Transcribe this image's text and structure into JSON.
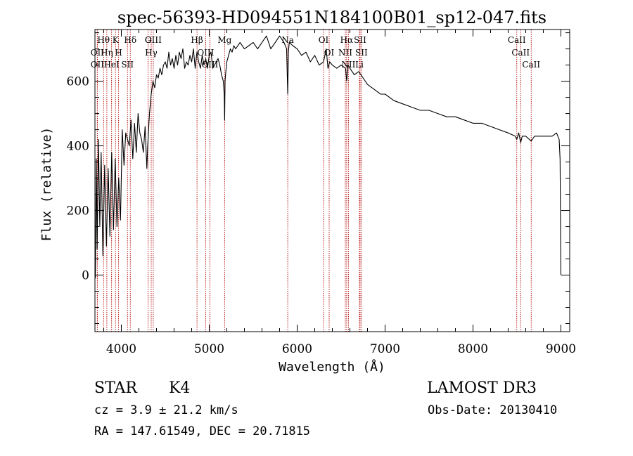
{
  "chart_data": {
    "type": "line",
    "title": "spec-56393-HD094551N184100B01_sp12-047.fits",
    "xlabel": "Wavelength (Å)",
    "ylabel": "Flux (relative)",
    "xlim": [
      3700,
      9100
    ],
    "ylim": [
      -175,
      760
    ],
    "xticks": [
      4000,
      5000,
      6000,
      7000,
      8000,
      9000
    ],
    "xtick_labels": [
      "4000",
      "5000",
      "6000",
      "7000",
      "8000",
      "9000"
    ],
    "yticks": [
      0,
      200,
      400,
      600
    ],
    "ytick_labels": [
      "0",
      "200",
      "400",
      "600"
    ],
    "series": [
      {
        "name": "flux",
        "x": [
          3705,
          3715,
          3725,
          3740,
          3755,
          3770,
          3790,
          3810,
          3830,
          3850,
          3870,
          3890,
          3910,
          3930,
          3950,
          3970,
          3990,
          4010,
          4030,
          4050,
          4070,
          4090,
          4110,
          4130,
          4150,
          4170,
          4190,
          4210,
          4230,
          4250,
          4270,
          4290,
          4300,
          4320,
          4340,
          4360,
          4380,
          4400,
          4420,
          4440,
          4460,
          4480,
          4500,
          4520,
          4540,
          4560,
          4580,
          4600,
          4620,
          4640,
          4660,
          4680,
          4700,
          4720,
          4740,
          4760,
          4780,
          4800,
          4820,
          4840,
          4860,
          4880,
          4900,
          4920,
          4940,
          4960,
          4980,
          5000,
          5020,
          5040,
          5060,
          5080,
          5100,
          5120,
          5140,
          5160,
          5170,
          5175,
          5180,
          5185,
          5200,
          5220,
          5240,
          5260,
          5280,
          5300,
          5350,
          5400,
          5450,
          5500,
          5550,
          5600,
          5650,
          5700,
          5750,
          5800,
          5850,
          5880,
          5893,
          5900,
          5910,
          5950,
          6000,
          6050,
          6100,
          6150,
          6200,
          6250,
          6300,
          6330,
          6350,
          6370,
          6400,
          6450,
          6500,
          6550,
          6563,
          6580,
          6600,
          6650,
          6700,
          6750,
          6800,
          6850,
          6900,
          6950,
          7000,
          7100,
          7200,
          7300,
          7400,
          7500,
          7600,
          7700,
          7800,
          7900,
          8000,
          8100,
          8200,
          8300,
          8400,
          8480,
          8498,
          8520,
          8542,
          8560,
          8600,
          8640,
          8662,
          8700,
          8750,
          8800,
          8850,
          8900,
          8950,
          8980,
          8990,
          9000
        ],
        "values": [
          -10,
          360,
          80,
          420,
          150,
          380,
          60,
          340,
          90,
          330,
          120,
          380,
          140,
          360,
          150,
          300,
          170,
          450,
          340,
          440,
          420,
          400,
          480,
          360,
          470,
          380,
          500,
          440,
          420,
          380,
          460,
          330,
          400,
          500,
          560,
          600,
          580,
          620,
          610,
          640,
          620,
          650,
          660,
          640,
          690,
          650,
          670,
          640,
          680,
          650,
          690,
          670,
          700,
          640,
          660,
          650,
          680,
          660,
          700,
          640,
          690,
          660,
          640,
          680,
          650,
          670,
          640,
          680,
          690,
          640,
          650,
          660,
          670,
          650,
          620,
          600,
          560,
          480,
          600,
          620,
          660,
          680,
          700,
          690,
          710,
          700,
          720,
          700,
          710,
          720,
          700,
          720,
          740,
          700,
          720,
          740,
          720,
          700,
          560,
          690,
          720,
          710,
          700,
          680,
          690,
          660,
          680,
          650,
          660,
          700,
          640,
          660,
          650,
          640,
          650,
          640,
          600,
          650,
          640,
          620,
          630,
          610,
          590,
          580,
          570,
          560,
          560,
          540,
          530,
          520,
          510,
          510,
          500,
          490,
          490,
          480,
          470,
          470,
          460,
          450,
          440,
          430,
          420,
          440,
          410,
          430,
          430,
          420,
          415,
          430,
          430,
          430,
          430,
          430,
          440,
          420,
          360,
          0
        ]
      }
    ],
    "lines": [
      {
        "name": "Hθ",
        "wl": 3798
      },
      {
        "name": "OII",
        "wl": 3727
      },
      {
        "name": "OII",
        "wl": 3727
      },
      {
        "name": "K",
        "wl": 3934
      },
      {
        "name": "H",
        "wl": 3969
      },
      {
        "name": "HeI",
        "wl": 3889
      },
      {
        "name": "Hη",
        "wl": 3835
      },
      {
        "name": "Hδ",
        "wl": 4102
      },
      {
        "name": "SII",
        "wl": 4070
      },
      {
        "name": "OIII",
        "wl": 4363
      },
      {
        "name": "Hγ",
        "wl": 4340
      },
      {
        "name": "G",
        "wl": 4305
      },
      {
        "name": "Hβ",
        "wl": 4861
      },
      {
        "name": "OIII",
        "wl": 4959
      },
      {
        "name": "OIII",
        "wl": 5007
      },
      {
        "name": "Mg",
        "wl": 5175
      },
      {
        "name": "Na",
        "wl": 5893
      },
      {
        "name": "OI",
        "wl": 6300
      },
      {
        "name": "OI",
        "wl": 6364
      },
      {
        "name": "Hα",
        "wl": 6563
      },
      {
        "name": "NII",
        "wl": 6548
      },
      {
        "name": "NII",
        "wl": 6583
      },
      {
        "name": "SII",
        "wl": 6716
      },
      {
        "name": "SII",
        "wl": 6731
      },
      {
        "name": "Li",
        "wl": 6708
      },
      {
        "name": "CaII",
        "wl": 8498
      },
      {
        "name": "CaII",
        "wl": 8542
      },
      {
        "name": "CaII",
        "wl": 8662
      }
    ],
    "grid": false,
    "legend": "none"
  },
  "info": {
    "class": "STAR",
    "subclass": "K4",
    "survey": "LAMOST DR3",
    "cz": "cz = 3.9 ± 21.2 km/s",
    "obs_date": "Obs-Date: 20130410",
    "coords": "RA = 147.61549, DEC =  20.71815"
  },
  "colors": {
    "axes": "#000000",
    "spectrum": "#000000",
    "line_markers": "#b00000"
  }
}
